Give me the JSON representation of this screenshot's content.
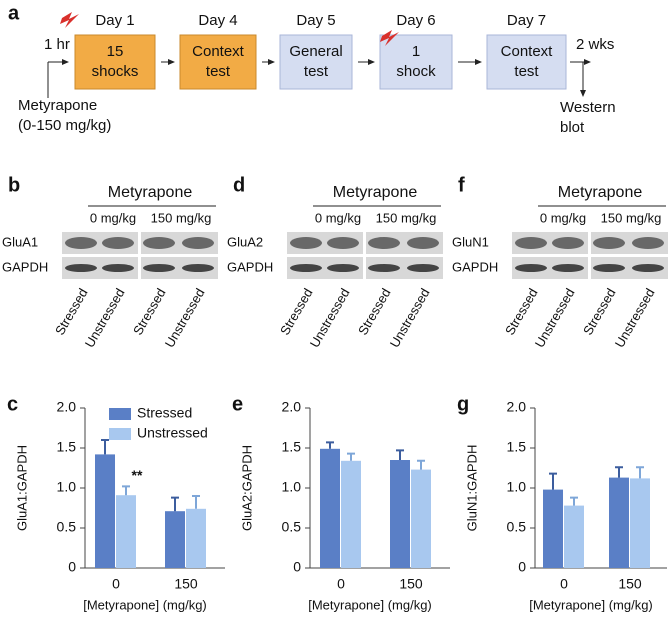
{
  "panel_a": {
    "label": "a",
    "pre": "1 hr",
    "drug": "Metyrapone",
    "dose": "(0-150 mg/kg)",
    "post": "2 wks",
    "endpoint": [
      "Western",
      "blot"
    ],
    "steps": [
      {
        "day": "Day 1",
        "text": [
          "15",
          "shocks"
        ]
      },
      {
        "day": "Day 4",
        "text": [
          "Context",
          "test"
        ]
      },
      {
        "day": "Day 5",
        "text": [
          "General",
          "test"
        ]
      },
      {
        "day": "Day 6",
        "text": [
          "1",
          "shock"
        ]
      },
      {
        "day": "Day 7",
        "text": [
          "Context",
          "test"
        ]
      }
    ]
  },
  "blots": [
    {
      "label": "b",
      "drug": "Metyrapone",
      "doses": [
        "0 mg/kg",
        "150 mg/kg"
      ],
      "rows": [
        "GluA1",
        "GAPDH"
      ],
      "lanes": [
        "Stressed",
        "Unstressed",
        "Stressed",
        "Unstressed"
      ]
    },
    {
      "label": "d",
      "drug": "Metyrapone",
      "doses": [
        "0 mg/kg",
        "150 mg/kg"
      ],
      "rows": [
        "GluA2",
        "GAPDH"
      ],
      "lanes": [
        "Stressed",
        "Unstressed",
        "Stressed",
        "Unstressed"
      ]
    },
    {
      "label": "f",
      "drug": "Metyrapone",
      "doses": [
        "0 mg/kg",
        "150 mg/kg"
      ],
      "rows": [
        "GluN1",
        "GAPDH"
      ],
      "lanes": [
        "Stressed",
        "Unstressed",
        "Stressed",
        "Unstressed"
      ]
    }
  ],
  "chart_data": [
    {
      "type": "bar",
      "label": "c",
      "ylabel": "GluA1:GAPDH",
      "xlabel": "[Metyrapone] (mg/kg)",
      "categories": [
        "0",
        "150"
      ],
      "series": [
        {
          "name": "Stressed",
          "color": "#5a7fc6",
          "values": [
            1.42,
            0.71
          ],
          "errors": [
            0.18,
            0.17
          ]
        },
        {
          "name": "Unstressed",
          "color": "#a8c8ef",
          "values": [
            0.91,
            0.74
          ],
          "errors": [
            0.11,
            0.16
          ]
        }
      ],
      "annotation": "**",
      "legend": true,
      "ylim": [
        0,
        2
      ],
      "yticks": [
        0,
        0.5,
        {
          "value": 1,
          "label": "1.0"
        },
        1.5,
        {
          "value": 2,
          "label": "2.0"
        }
      ]
    },
    {
      "type": "bar",
      "label": "e",
      "ylabel": "GluA2:GAPDH",
      "xlabel": "[Metyrapone] (mg/kg)",
      "categories": [
        "0",
        "150"
      ],
      "series": [
        {
          "name": "Stressed",
          "color": "#5a7fc6",
          "values": [
            1.49,
            1.35
          ],
          "errors": [
            0.08,
            0.12
          ]
        },
        {
          "name": "Unstressed",
          "color": "#a8c8ef",
          "values": [
            1.34,
            1.23
          ],
          "errors": [
            0.09,
            0.11
          ]
        }
      ],
      "legend": false,
      "ylim": [
        0,
        2
      ],
      "yticks": [
        0,
        0.5,
        {
          "value": 1,
          "label": "1.0"
        },
        1.5,
        {
          "value": 2,
          "label": "2.0"
        }
      ]
    },
    {
      "type": "bar",
      "label": "g",
      "ylabel": "GluN1:GAPDH",
      "xlabel": "[Metyrapone] (mg/kg)",
      "categories": [
        "0",
        "150"
      ],
      "series": [
        {
          "name": "Stressed",
          "color": "#5a7fc6",
          "values": [
            0.98,
            1.13
          ],
          "errors": [
            0.2,
            0.13
          ]
        },
        {
          "name": "Unstressed",
          "color": "#a8c8ef",
          "values": [
            0.78,
            1.12
          ],
          "errors": [
            0.1,
            0.14
          ]
        }
      ],
      "legend": false,
      "ylim": [
        0,
        2
      ],
      "yticks": [
        0,
        0.5,
        {
          "value": 1,
          "label": "1.0"
        },
        1.5,
        {
          "value": 2,
          "label": "2.0"
        }
      ]
    }
  ]
}
